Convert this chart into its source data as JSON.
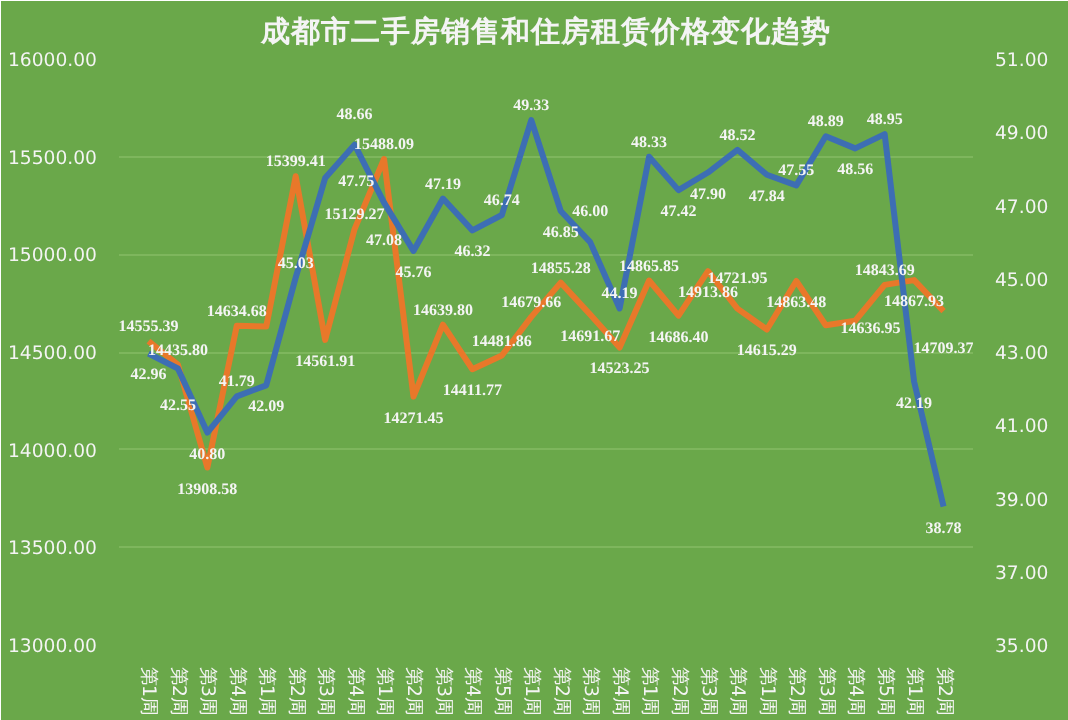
{
  "chart_data": {
    "type": "line",
    "title": "成都市二手房销售和住房租赁价格变化趋势",
    "categories": [
      "第1周",
      "第2周",
      "第3周",
      "第4周",
      "第1周",
      "第2周",
      "第3周",
      "第4周",
      "第1周",
      "第2周",
      "第3周",
      "第4周",
      "第5周",
      "第1周",
      "第2周",
      "第3周",
      "第4周",
      "第1周",
      "第2周",
      "第3周",
      "第4周",
      "第1周",
      "第2周",
      "第3周",
      "第4周",
      "第5周",
      "第1周",
      "第2周"
    ],
    "series": [
      {
        "color": "#e8782a",
        "values": [
          14555.39,
          14435.8,
          13908.58,
          14634.68,
          14630,
          15399.41,
          14561.91,
          15129.27,
          15488.09,
          14271.45,
          14639.8,
          14411.77,
          14481.86,
          14679.66,
          14855.28,
          14691.67,
          14523.25,
          14865.85,
          14686.4,
          14913.86,
          14721.95,
          14615.29,
          14863.48,
          14636.95,
          14660,
          14843.69,
          14867.93,
          14709.37
        ],
        "value_labels": [
          "14555.39",
          "14435.80",
          "13908.58",
          "14634.68",
          null,
          "15399.41",
          "14561.91",
          "15129.27",
          "15488.09",
          "14271.45",
          "14639.80",
          "14411.77",
          "14481.86",
          "14679.66",
          "14855.28",
          "14691.67",
          "14523.25",
          "14865.85",
          "14686.40",
          "14913.86",
          "14721.95",
          "14615.29",
          "14863.48",
          "14636.95",
          null,
          "14843.69",
          "14867.93",
          "14709.37"
        ]
      },
      {
        "color": "#3d6eb4",
        "axis": "y2",
        "values": [
          42.96,
          42.55,
          40.8,
          41.79,
          42.09,
          45.03,
          47.75,
          48.66,
          47.08,
          45.76,
          47.19,
          46.32,
          46.74,
          49.33,
          46.85,
          46.0,
          44.19,
          48.33,
          47.42,
          47.9,
          48.52,
          47.84,
          47.55,
          48.89,
          48.56,
          48.95,
          42.19,
          38.78
        ],
        "value_labels": [
          "42.96",
          "42.55",
          "40.80",
          "41.79",
          "42.09",
          "45.03",
          "47.75",
          "48.66",
          "47.08",
          "45.76",
          "47.19",
          "46.32",
          "46.74",
          "49.33",
          "46.85",
          "46.00",
          "44.19",
          "48.33",
          "47.42",
          "47.90",
          "48.52",
          "47.84",
          "47.55",
          "48.89",
          "48.56",
          "48.95",
          "42.19",
          "38.78"
        ]
      }
    ],
    "ylim": [
      13000,
      16000
    ],
    "yticks": [
      {
        "value": 13000,
        "label": "13000.00"
      },
      {
        "value": 13500,
        "label": "13500.00"
      },
      {
        "value": 14000,
        "label": "14000.00"
      },
      {
        "value": 14500,
        "label": "14500.00"
      },
      {
        "value": 15000,
        "label": "15000.00"
      },
      {
        "value": 15500,
        "label": "15500.00"
      },
      {
        "value": 16000,
        "label": "16000.00"
      }
    ],
    "y2lim": [
      35,
      51
    ],
    "y2ticks": [
      {
        "value": 35,
        "label": "35.00"
      },
      {
        "value": 37,
        "label": "37.00"
      },
      {
        "value": 39,
        "label": "39.00"
      },
      {
        "value": 41,
        "label": "41.00"
      },
      {
        "value": 43,
        "label": "43.00"
      },
      {
        "value": 45,
        "label": "45.00"
      },
      {
        "value": 47,
        "label": "47.00"
      },
      {
        "value": 49,
        "label": "49.00"
      },
      {
        "value": 51,
        "label": "51.00"
      }
    ],
    "grid": "y",
    "marker": "none",
    "line_style": "solid"
  }
}
